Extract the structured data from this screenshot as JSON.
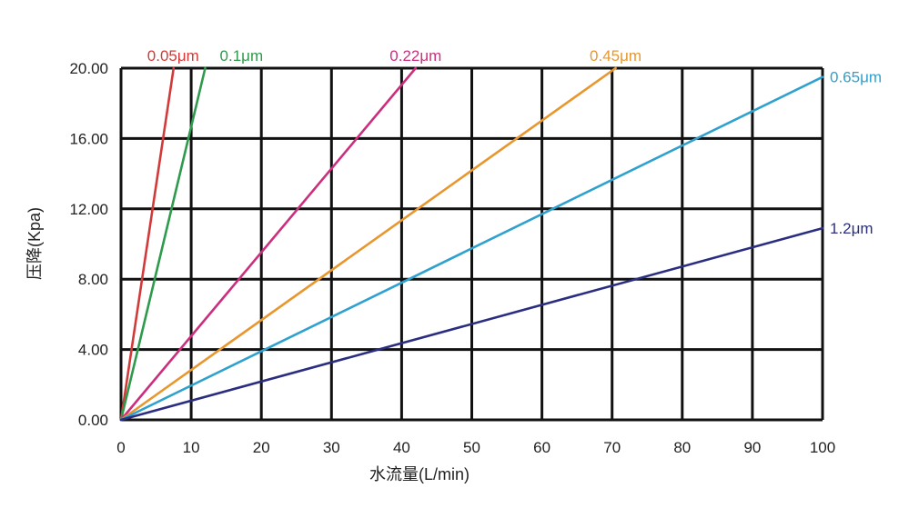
{
  "chart_data": {
    "type": "line",
    "xlabel": "水流量(L/min)",
    "ylabel": "压降(Kpa)",
    "xlim": [
      0,
      100
    ],
    "ylim": [
      0,
      20
    ],
    "x_ticks": [
      "0",
      "10",
      "20",
      "30",
      "40",
      "50",
      "60",
      "70",
      "80",
      "90",
      "100"
    ],
    "y_ticks": [
      "0.00",
      "4.00",
      "8.00",
      "12.00",
      "16.00",
      "20.00"
    ],
    "grid": true,
    "series": [
      {
        "name": "0.05μm",
        "color": "#d23a3a",
        "x": [
          0,
          7.5
        ],
        "y": [
          0,
          20
        ]
      },
      {
        "name": "0.1μm",
        "color": "#2e9a4c",
        "x": [
          0,
          12
        ],
        "y": [
          0,
          20
        ]
      },
      {
        "name": "0.22μm",
        "color": "#cc2e7e",
        "x": [
          0,
          42
        ],
        "y": [
          0,
          20
        ]
      },
      {
        "name": "0.45μm",
        "color": "#e8972f",
        "x": [
          0,
          70.5
        ],
        "y": [
          0,
          20
        ]
      },
      {
        "name": "0.65μm",
        "color": "#2ea1cf",
        "x": [
          0,
          100
        ],
        "y": [
          0,
          19.5
        ]
      },
      {
        "name": "1.2μm",
        "color": "#2b2e80",
        "x": [
          0,
          100
        ],
        "y": [
          0,
          10.9
        ]
      }
    ]
  }
}
